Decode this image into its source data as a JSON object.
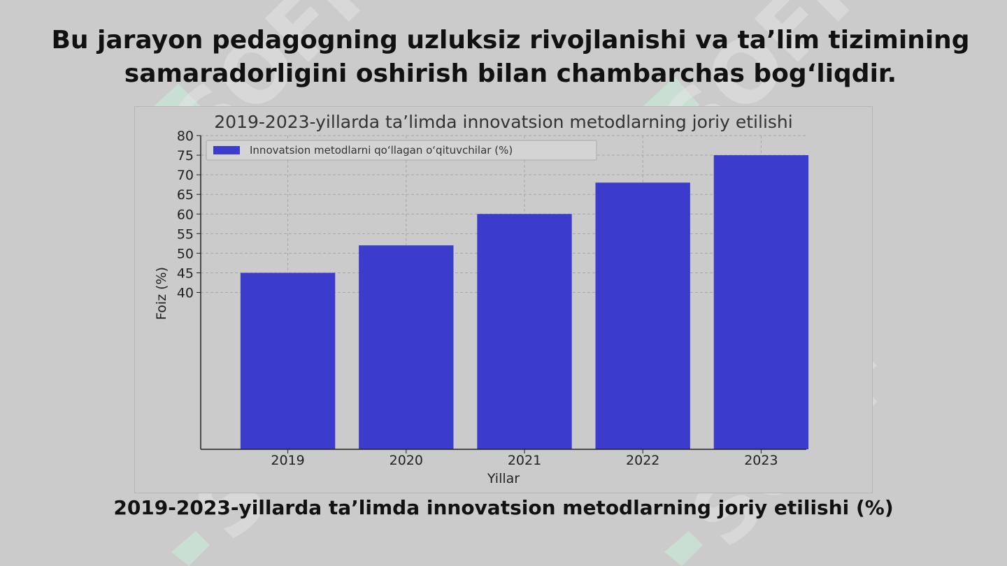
{
  "slide": {
    "heading_line1": "Bu jarayon pedagogning uzluksiz rivojlanishi va ta’lim tizimining",
    "heading_line2": "samaradorligini oshirish bilan chambarchas bog‘liqdir.",
    "caption": "2019-2023-yillarda ta’limda innovatsion metodlarning joriy etilishi (%)",
    "watermark_text": "SOFF"
  },
  "chart_data": {
    "type": "bar",
    "title": "2019-2023-yillarda ta’limda innovatsion metodlarning joriy etilishi",
    "xlabel": "Yillar",
    "ylabel": "Foiz (%)",
    "categories": [
      "2019",
      "2020",
      "2021",
      "2022",
      "2023"
    ],
    "series": [
      {
        "name": "Innovatsion metodlarni qo‘llagan o‘qituvchilar (%)",
        "values": [
          45,
          52,
          60,
          68,
          75
        ]
      }
    ],
    "yticks": [
      40,
      45,
      50,
      55,
      60,
      65,
      70,
      75,
      80
    ],
    "ylim": [
      0,
      80
    ],
    "grid": true,
    "legend_position": "top-left",
    "bar_color": "#3b3bcc"
  }
}
